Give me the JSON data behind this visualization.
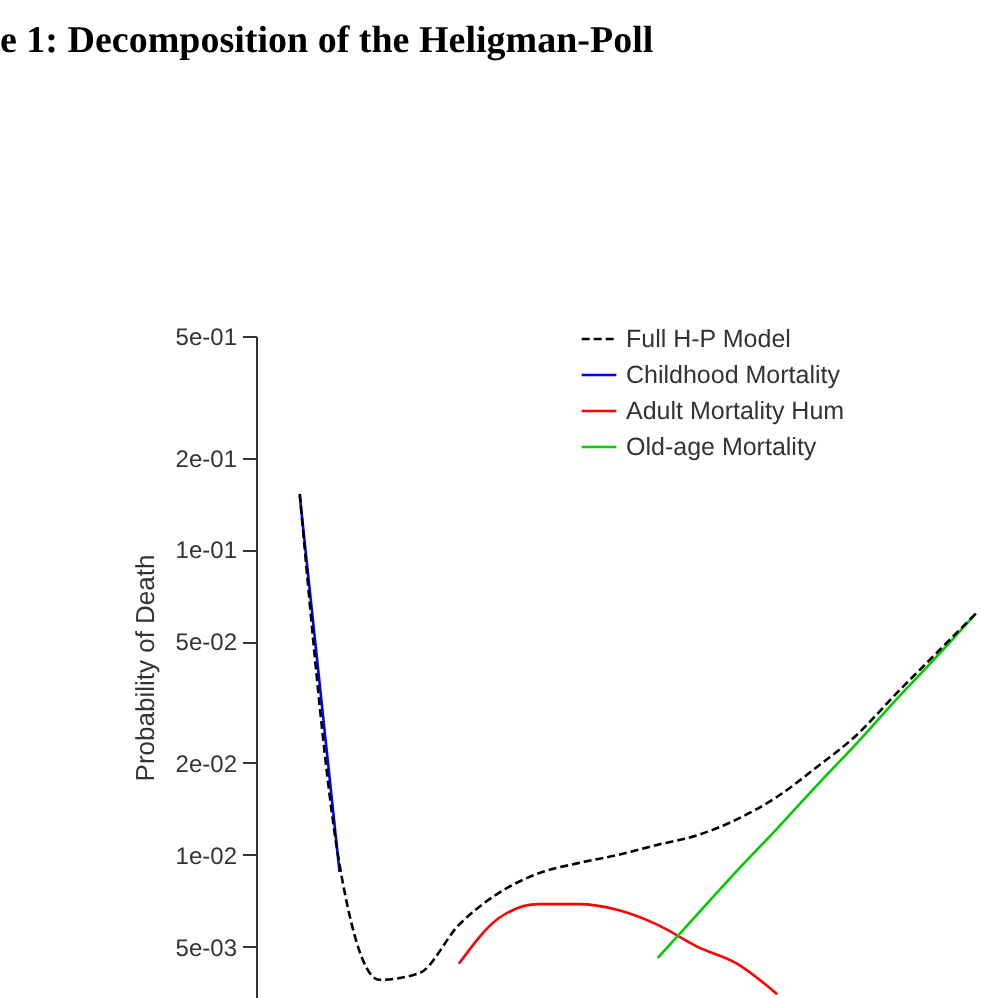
{
  "chart_data": {
    "type": "line",
    "title": "e 1: Decomposition of the Heligman-Poll",
    "ylabel": "Probability of Death",
    "categories": [
      null,
      null,
      null,
      null,
      null,
      null,
      null,
      null,
      null,
      null,
      null,
      null,
      null,
      null,
      null,
      null,
      null,
      null
    ],
    "series": [
      {
        "name": "Full H-P Model",
        "color": "#000000",
        "line_style": "dashed",
        "values": [
          0.152,
          0.0093,
          0.0039,
          0.0041,
          0.0059,
          0.0075,
          0.0087,
          0.0094,
          0.01,
          0.0108,
          0.0116,
          0.0131,
          0.0155,
          0.0194,
          0.0247,
          0.0338,
          0.0457,
          0.0618
        ]
      },
      {
        "name": "Childhood Mortality",
        "color": "#0000ff",
        "values": [
          0.15,
          0.0088,
          null,
          null,
          null,
          null,
          null,
          null,
          null,
          null,
          null,
          null,
          null,
          null,
          null,
          null,
          null,
          null
        ]
      },
      {
        "name": "Adult Mortality Hum",
        "color": "#ff0000",
        "values": [
          null,
          null,
          null,
          null,
          0.0044,
          0.0062,
          0.0069,
          0.0069,
          0.0066,
          0.0059,
          0.005,
          0.0044,
          0.0035,
          null,
          null,
          null,
          null,
          null
        ]
      },
      {
        "name": "Old-age Mortality",
        "color": "#00cc00",
        "values": [
          null,
          null,
          null,
          null,
          null,
          null,
          null,
          null,
          null,
          0.0046,
          0.0064,
          0.0089,
          0.0122,
          0.0169,
          0.0232,
          0.0323,
          0.0444,
          0.0618
        ]
      }
    ],
    "log": "y",
    "ylim": [
      0.0034,
      0.5
    ],
    "yticks": [
      {
        "value": 0.5,
        "label": "5e-01"
      },
      {
        "value": 0.2,
        "label": "2e-01"
      },
      {
        "value": 0.1,
        "label": "1e-01"
      },
      {
        "value": 0.05,
        "label": "5e-02"
      },
      {
        "value": 0.02,
        "label": "2e-02"
      },
      {
        "value": 0.01,
        "label": "1e-02"
      },
      {
        "value": 0.005,
        "label": "5e-03"
      }
    ],
    "tick_labels": "y",
    "grid": false,
    "legend": "top right"
  }
}
